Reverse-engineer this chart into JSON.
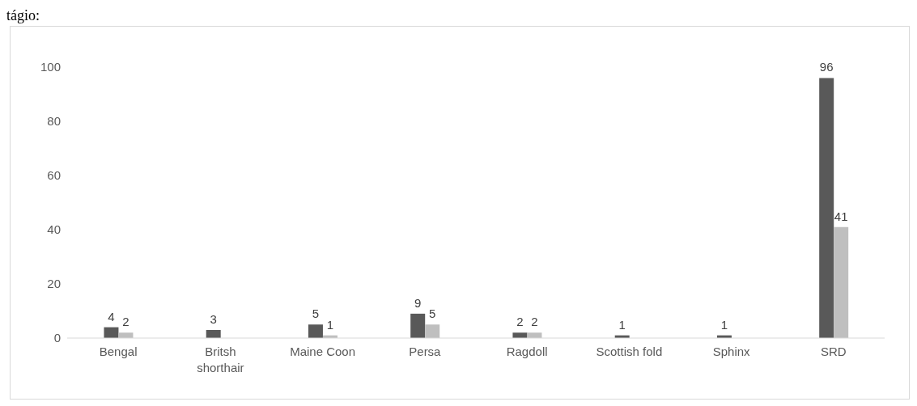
{
  "chart_data": {
    "type": "bar",
    "annotations": [
      "tágio:"
    ],
    "categories": [
      "Bengal",
      "Britsh shorthair",
      "Maine Coon",
      "Persa",
      "Ragdoll",
      "Scottish fold",
      "Sphinx",
      "SRD"
    ],
    "series": [
      {
        "color": "#595959",
        "values": [
          4,
          3,
          5,
          9,
          2,
          1,
          1,
          96
        ]
      },
      {
        "color": "#bfbfbf",
        "values": [
          2,
          null,
          1,
          5,
          2,
          null,
          null,
          41
        ]
      }
    ],
    "ylim": [
      0,
      100
    ],
    "yticks": [
      0,
      20,
      40,
      60,
      80,
      100
    ],
    "grid": false,
    "legend": false,
    "data_labels": true
  }
}
